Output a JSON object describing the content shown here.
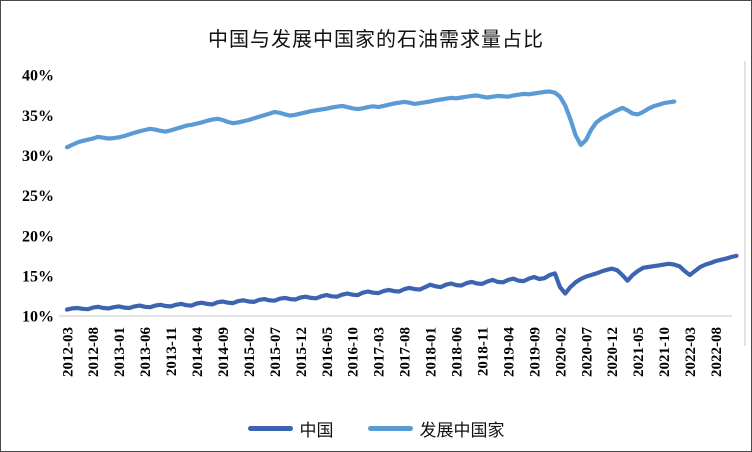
{
  "colors": {
    "china_line": "#3d64b0",
    "developing_line": "#5b9bd5",
    "axis_line": "#d9d9d9",
    "frame_border": "#4a4a4a",
    "background": "#ffffff",
    "text": "#000000"
  },
  "chart_data": {
    "type": "line",
    "title": "中国与发展中国家的石油需求量占比",
    "xlabel": "",
    "ylabel": "",
    "ylim": [
      10,
      40
    ],
    "y_unit": "%",
    "grid": false,
    "legend_position": "bottom",
    "x_start_month": "2012-03",
    "x_tick_every_months": 5,
    "x_tick_labels": [
      "2012-03",
      "2012-08",
      "2013-01",
      "2013-06",
      "2013-11",
      "2014-04",
      "2014-09",
      "2015-02",
      "2015-07",
      "2015-12",
      "2016-05",
      "2016-10",
      "2017-03",
      "2017-08",
      "2018-01",
      "2018-06",
      "2018-11",
      "2019-04",
      "2019-09",
      "2020-02",
      "2020-07",
      "2020-12",
      "2021-05",
      "2021-10",
      "2022-03",
      "2022-08"
    ],
    "y_tick_labels": [
      "40%",
      "35%",
      "30%",
      "25%",
      "20%",
      "15%",
      "10%"
    ],
    "y_tick_values": [
      40,
      35,
      30,
      25,
      20,
      15,
      10
    ],
    "series": [
      {
        "name": "中国",
        "color": "#3d64b0",
        "start_month": "2012-03",
        "end_month": "2022-12",
        "values": [
          10.8,
          10.95,
          11.0,
          10.9,
          10.85,
          11.05,
          11.15,
          11.0,
          10.95,
          11.1,
          11.2,
          11.05,
          11.0,
          11.2,
          11.3,
          11.15,
          11.1,
          11.3,
          11.4,
          11.25,
          11.2,
          11.4,
          11.5,
          11.35,
          11.3,
          11.55,
          11.65,
          11.5,
          11.45,
          11.7,
          11.8,
          11.65,
          11.6,
          11.85,
          11.95,
          11.8,
          11.75,
          12.0,
          12.1,
          11.95,
          11.9,
          12.15,
          12.25,
          12.1,
          12.05,
          12.3,
          12.4,
          12.25,
          12.2,
          12.45,
          12.6,
          12.45,
          12.4,
          12.65,
          12.8,
          12.65,
          12.6,
          12.9,
          13.05,
          12.9,
          12.85,
          13.1,
          13.25,
          13.1,
          13.05,
          13.35,
          13.5,
          13.35,
          13.3,
          13.6,
          13.9,
          13.7,
          13.6,
          13.9,
          14.05,
          13.85,
          13.8,
          14.1,
          14.25,
          14.05,
          14.0,
          14.3,
          14.5,
          14.25,
          14.2,
          14.5,
          14.65,
          14.4,
          14.35,
          14.65,
          14.85,
          14.6,
          14.7,
          15.1,
          15.3,
          13.6,
          12.8,
          13.6,
          14.2,
          14.6,
          14.9,
          15.1,
          15.3,
          15.55,
          15.75,
          15.9,
          15.7,
          15.1,
          14.4,
          15.1,
          15.6,
          16.0,
          16.1,
          16.2,
          16.3,
          16.4,
          16.5,
          16.4,
          16.2,
          15.6,
          15.1,
          15.6,
          16.1,
          16.4,
          16.6,
          16.85,
          17.0,
          17.15,
          17.35,
          17.5
        ]
      },
      {
        "name": "发展中国家",
        "color": "#5b9bd5",
        "start_month": "2012-03",
        "end_month": "2021-12",
        "values": [
          31.0,
          31.3,
          31.6,
          31.8,
          31.95,
          32.1,
          32.3,
          32.2,
          32.1,
          32.15,
          32.25,
          32.4,
          32.6,
          32.8,
          33.0,
          33.15,
          33.3,
          33.2,
          33.05,
          32.95,
          33.1,
          33.3,
          33.5,
          33.7,
          33.8,
          33.95,
          34.1,
          34.3,
          34.45,
          34.55,
          34.4,
          34.15,
          34.0,
          34.1,
          34.25,
          34.4,
          34.6,
          34.8,
          35.0,
          35.2,
          35.4,
          35.3,
          35.1,
          34.95,
          35.05,
          35.2,
          35.35,
          35.5,
          35.6,
          35.7,
          35.8,
          35.95,
          36.05,
          36.15,
          36.0,
          35.85,
          35.75,
          35.85,
          36.0,
          36.1,
          36.0,
          36.15,
          36.3,
          36.45,
          36.55,
          36.65,
          36.55,
          36.4,
          36.5,
          36.6,
          36.7,
          36.85,
          36.95,
          37.05,
          37.15,
          37.1,
          37.2,
          37.3,
          37.4,
          37.45,
          37.3,
          37.2,
          37.3,
          37.4,
          37.35,
          37.3,
          37.45,
          37.55,
          37.65,
          37.6,
          37.7,
          37.8,
          37.9,
          37.95,
          37.8,
          37.3,
          36.2,
          34.5,
          32.5,
          31.3,
          31.9,
          33.2,
          34.1,
          34.6,
          34.95,
          35.3,
          35.6,
          35.9,
          35.6,
          35.2,
          35.1,
          35.4,
          35.8,
          36.1,
          36.3,
          36.5,
          36.6,
          36.7
        ]
      }
    ]
  }
}
